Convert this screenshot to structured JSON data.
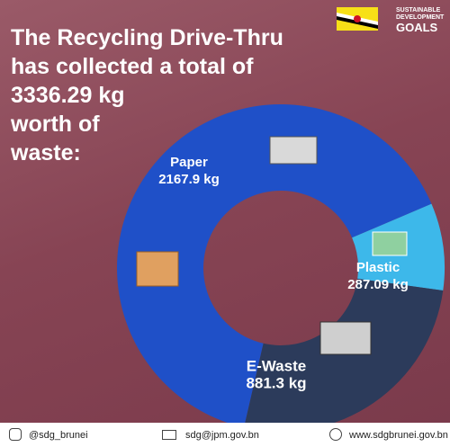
{
  "header": {
    "title_lines": [
      "The Recycling Drive-Thru",
      "has collected a total of",
      "3336.29 kg",
      "worth of",
      "waste:"
    ],
    "logo_lines": [
      "SUSTAINABLE",
      "DEVELOPMENT",
      "GOALS"
    ]
  },
  "chart_data": {
    "type": "pie",
    "categories": [
      "Paper",
      "Plastic",
      "E-Waste"
    ],
    "values": [
      2167.9,
      287.09,
      881.3
    ],
    "value_labels": [
      "2167.9 kg",
      "287.09 kg",
      "881.3 kg"
    ],
    "colors": [
      "#1f50c8",
      "#3db8ea",
      "#2c3b5b"
    ]
  },
  "footer": {
    "instagram": "@sdg_brunei",
    "email": "sdg@jpm.gov.bn",
    "website": "www.sdgbrunei.gov.bn"
  }
}
